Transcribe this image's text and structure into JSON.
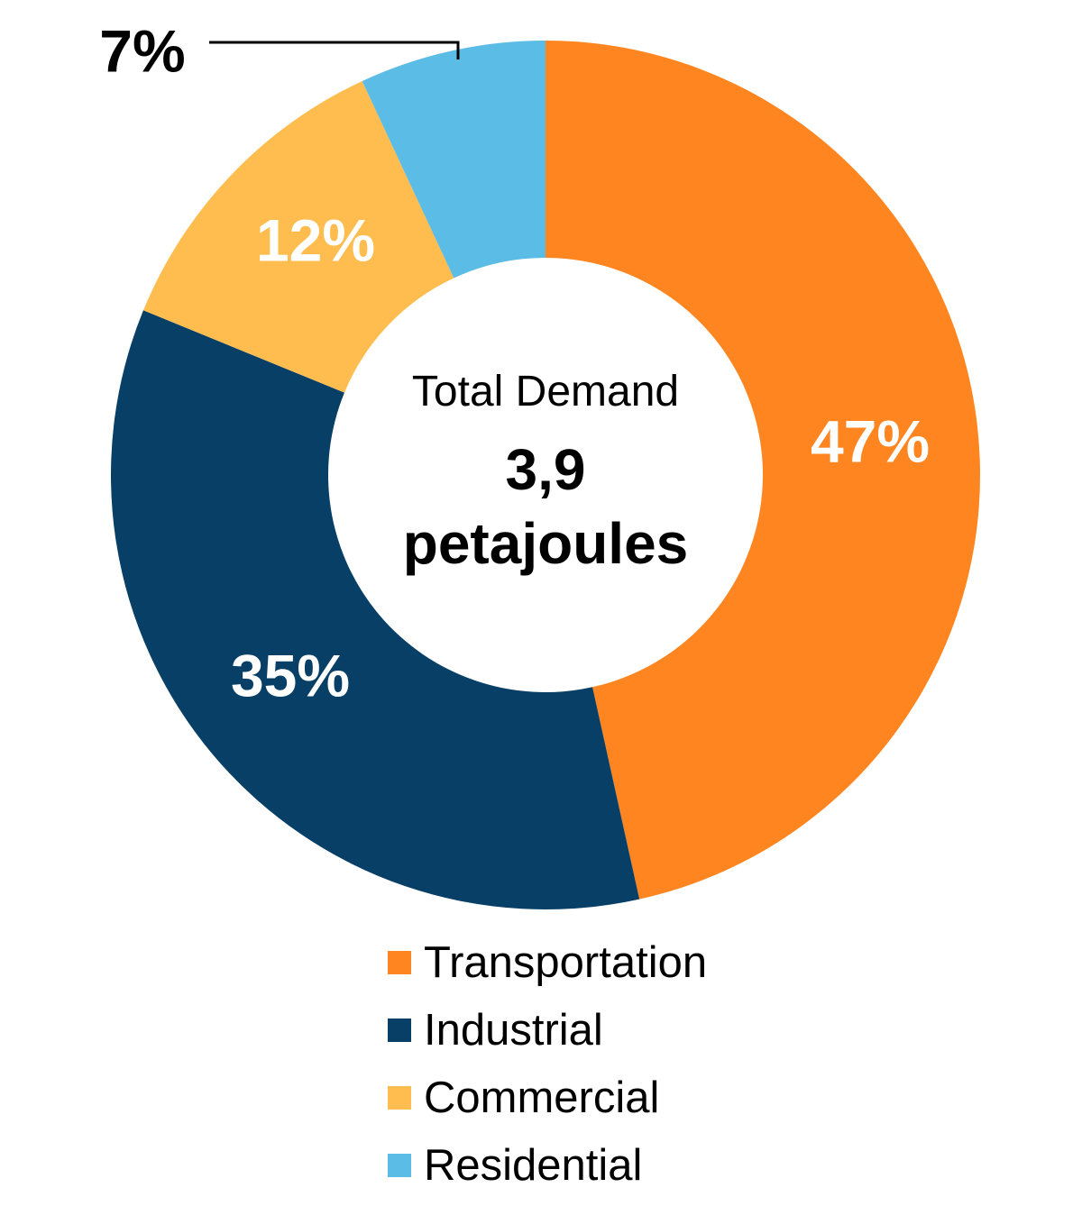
{
  "chart_data": {
    "type": "pie",
    "variant": "donut",
    "categories": [
      "Transportation",
      "Industrial",
      "Commercial",
      "Residential"
    ],
    "values": [
      47,
      35,
      12,
      7
    ],
    "labels": [
      "47%",
      "35%",
      "12%",
      "7%"
    ],
    "colors": [
      "#FF8520",
      "#083F66",
      "#FFBD4F",
      "#5BBDE6"
    ],
    "center_title": "Total Demand",
    "center_value": "3,9",
    "center_unit": "petajoules",
    "legend_position": "bottom"
  }
}
